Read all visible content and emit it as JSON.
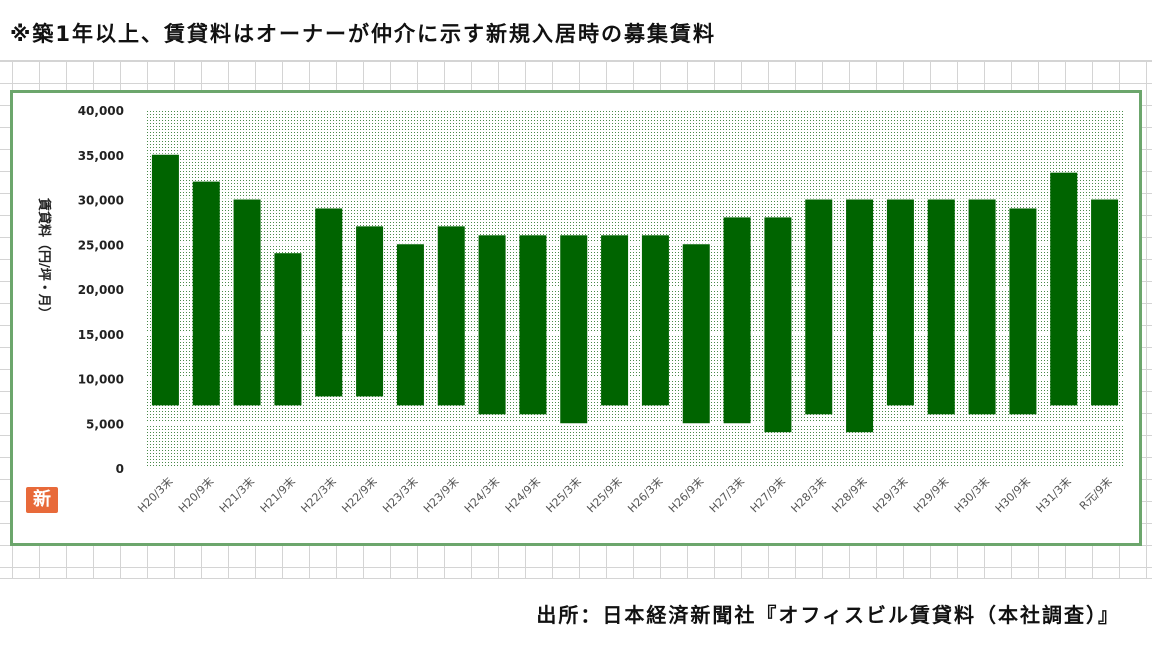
{
  "note": "※築1年以上、賃貸料はオーナーが仲介に示す新規入居時の募集賃料",
  "source": "出所：日本経済新聞社『オフィスビル賃貸料（本社調査）』",
  "logo_text": "新",
  "colors": {
    "bar": "#006400",
    "frame": "#6ca66c",
    "plot_dots": "#4a8a4a",
    "logo": "#e86a3a"
  },
  "chart_data": {
    "type": "bar",
    "subtype": "floating-range",
    "ylabel": "賃貸料（円/坪・月）",
    "ylim": [
      0,
      40000
    ],
    "yticks": [
      0,
      5000,
      10000,
      15000,
      20000,
      25000,
      30000,
      35000,
      40000
    ],
    "ytick_labels": [
      "0",
      "5,000",
      "10,000",
      "15,000",
      "20,000",
      "25,000",
      "30,000",
      "35,000",
      "40,000"
    ],
    "grid": true,
    "categories": [
      "H20/3末",
      "H20/9末",
      "H21/3末",
      "H21/9末",
      "H22/3末",
      "H22/9末",
      "H23/3末",
      "H23/9末",
      "H24/3末",
      "H24/9末",
      "H25/3末",
      "H25/9末",
      "H26/3末",
      "H26/9末",
      "H27/3末",
      "H27/9末",
      "H28/3末",
      "H28/9末",
      "H29/3末",
      "H29/9末",
      "H30/3末",
      "H30/9末",
      "H31/3末",
      "R元/9末"
    ],
    "low": [
      7000,
      7000,
      7000,
      7000,
      8000,
      8000,
      7000,
      7000,
      6000,
      6000,
      5000,
      7000,
      7000,
      5000,
      5000,
      4000,
      6000,
      4000,
      7000,
      6000,
      6000,
      6000,
      7000,
      7000
    ],
    "high": [
      35000,
      32000,
      30000,
      24000,
      29000,
      27000,
      25000,
      27000,
      26000,
      26000,
      26000,
      26000,
      26000,
      25000,
      28000,
      28000,
      30000,
      30000,
      30000,
      30000,
      30000,
      29000,
      33000,
      30000
    ]
  }
}
